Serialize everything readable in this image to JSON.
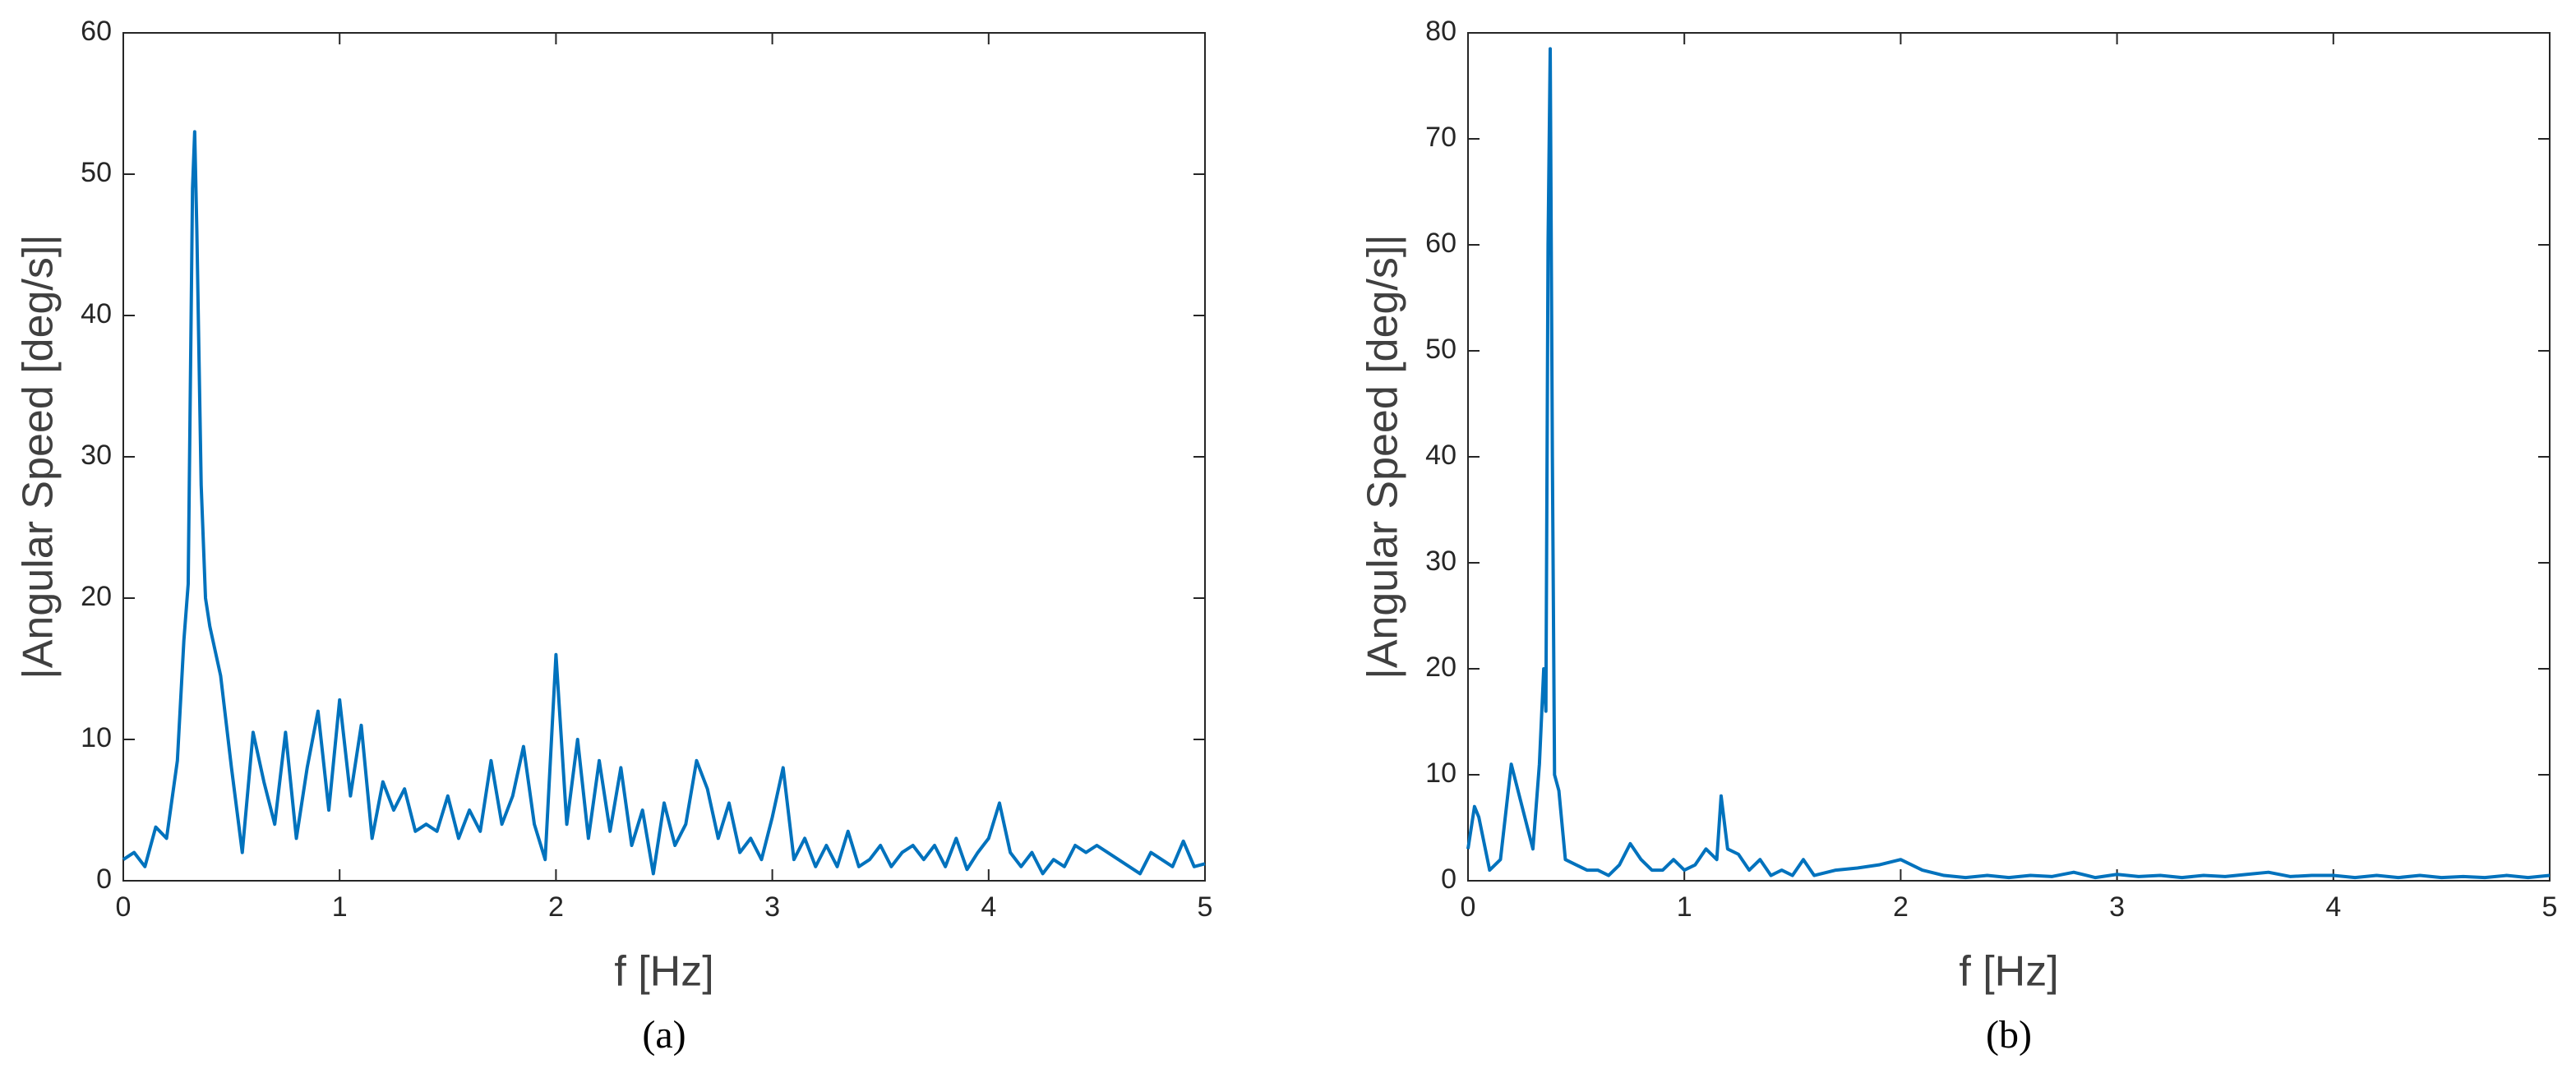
{
  "chart_data": [
    {
      "type": "line",
      "caption": "(a)",
      "xlabel": "f [Hz]",
      "ylabel": "|Angular Speed [deg/s]|",
      "color": "#0072bd",
      "x": [
        0,
        0.05,
        0.1,
        0.15,
        0.2,
        0.25,
        0.28,
        0.3,
        0.32,
        0.33,
        0.34,
        0.36,
        0.38,
        0.4,
        0.45,
        0.5,
        0.55,
        0.6,
        0.65,
        0.7,
        0.75,
        0.8,
        0.85,
        0.9,
        0.95,
        1.0,
        1.05,
        1.1,
        1.15,
        1.2,
        1.25,
        1.3,
        1.35,
        1.4,
        1.45,
        1.5,
        1.55,
        1.6,
        1.65,
        1.7,
        1.75,
        1.8,
        1.85,
        1.9,
        1.95,
        2.0,
        2.05,
        2.1,
        2.15,
        2.2,
        2.25,
        2.3,
        2.35,
        2.4,
        2.45,
        2.5,
        2.55,
        2.6,
        2.65,
        2.7,
        2.75,
        2.8,
        2.85,
        2.9,
        2.95,
        3.0,
        3.05,
        3.1,
        3.15,
        3.2,
        3.25,
        3.3,
        3.35,
        3.4,
        3.45,
        3.5,
        3.55,
        3.6,
        3.65,
        3.7,
        3.75,
        3.8,
        3.85,
        3.9,
        3.95,
        4.0,
        4.05,
        4.1,
        4.15,
        4.2,
        4.25,
        4.3,
        4.35,
        4.4,
        4.45,
        4.5,
        4.55,
        4.6,
        4.65,
        4.7,
        4.75,
        4.8,
        4.85,
        4.9,
        4.95,
        5.0
      ],
      "values": [
        1.5,
        2.0,
        1.0,
        3.8,
        3.0,
        8.5,
        17,
        21,
        49,
        53,
        46,
        28,
        20,
        18,
        14.5,
        8,
        2,
        10.5,
        7,
        4,
        10.5,
        3,
        8,
        12,
        5,
        12.8,
        6,
        11,
        3,
        7,
        5,
        6.5,
        3.5,
        4,
        3.5,
        6,
        3,
        5,
        3.5,
        8.5,
        4,
        6,
        9.5,
        4,
        1.5,
        16,
        4,
        10,
        3,
        8.5,
        3.5,
        8,
        2.5,
        5,
        0.5,
        5.5,
        2.5,
        4,
        8.5,
        6.5,
        3,
        5.5,
        2,
        3,
        1.5,
        4.5,
        8,
        1.5,
        3,
        1,
        2.5,
        1,
        3.5,
        1,
        1.5,
        2.5,
        1,
        2,
        2.5,
        1.5,
        2.5,
        1,
        3,
        0.8,
        2,
        3,
        5.5,
        2,
        1,
        2,
        0.5,
        1.5,
        1,
        2.5,
        2,
        2.5,
        2,
        1.5,
        1,
        0.5,
        2,
        1.5,
        1,
        2.8,
        1,
        1.2
      ],
      "xlim": [
        0,
        5
      ],
      "xticks": [
        0,
        1,
        2,
        3,
        4,
        5
      ],
      "ylim": [
        0,
        60
      ],
      "yticks": [
        0,
        10,
        20,
        30,
        40,
        50,
        60
      ]
    },
    {
      "type": "line",
      "caption": "(b)",
      "xlabel": "f [Hz]",
      "ylabel": "|Angular Speed [deg/s]|",
      "color": "#0072bd",
      "x": [
        0,
        0.03,
        0.05,
        0.1,
        0.15,
        0.2,
        0.25,
        0.3,
        0.33,
        0.35,
        0.36,
        0.37,
        0.38,
        0.39,
        0.4,
        0.42,
        0.45,
        0.5,
        0.55,
        0.6,
        0.65,
        0.7,
        0.75,
        0.8,
        0.85,
        0.9,
        0.95,
        1.0,
        1.05,
        1.1,
        1.15,
        1.17,
        1.2,
        1.25,
        1.3,
        1.35,
        1.4,
        1.45,
        1.5,
        1.55,
        1.6,
        1.7,
        1.8,
        1.9,
        2.0,
        2.1,
        2.2,
        2.3,
        2.4,
        2.5,
        2.6,
        2.7,
        2.8,
        2.9,
        3.0,
        3.1,
        3.2,
        3.3,
        3.4,
        3.5,
        3.6,
        3.7,
        3.8,
        3.9,
        4.0,
        4.1,
        4.2,
        4.3,
        4.4,
        4.5,
        4.6,
        4.7,
        4.8,
        4.9,
        5.0
      ],
      "values": [
        3,
        7,
        6,
        1,
        2,
        11,
        7,
        3,
        11,
        20,
        16,
        60,
        78.5,
        40,
        10,
        8.5,
        2,
        1.5,
        1,
        1,
        0.5,
        1.5,
        3.5,
        2,
        1,
        1,
        2,
        1,
        1.5,
        3,
        2,
        8,
        3,
        2.5,
        1,
        2,
        0.5,
        1,
        0.5,
        2,
        0.5,
        1,
        1.2,
        1.5,
        2,
        1,
        0.5,
        0.3,
        0.5,
        0.3,
        0.5,
        0.4,
        0.8,
        0.3,
        0.6,
        0.4,
        0.5,
        0.3,
        0.5,
        0.4,
        0.6,
        0.8,
        0.4,
        0.5,
        0.5,
        0.3,
        0.5,
        0.3,
        0.5,
        0.3,
        0.4,
        0.3,
        0.5,
        0.3,
        0.5
      ],
      "xlim": [
        0,
        5
      ],
      "xticks": [
        0,
        1,
        2,
        3,
        4,
        5
      ],
      "ylim": [
        0,
        80
      ],
      "yticks": [
        0,
        10,
        20,
        30,
        40,
        50,
        60,
        70,
        80
      ]
    }
  ]
}
